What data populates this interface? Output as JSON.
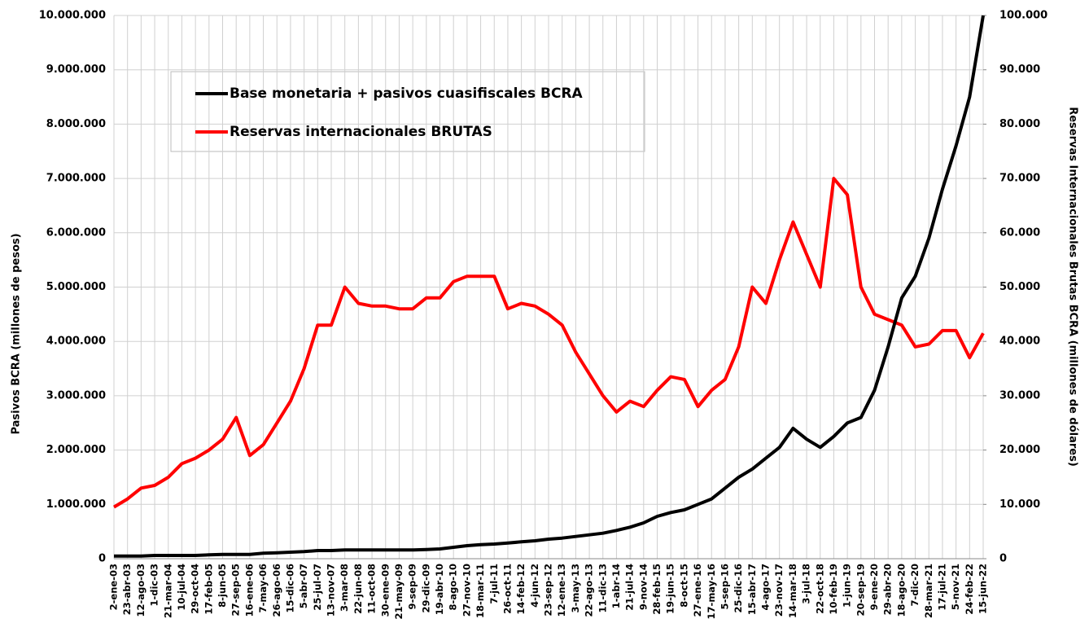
{
  "chart_data": {
    "type": "line",
    "categories": [
      "2-ene-03",
      "23-abr-03",
      "12-ago-03",
      "1-dic-03",
      "21-mar-04",
      "10-jul-04",
      "29-oct-04",
      "17-feb-05",
      "8-jun-05",
      "27-sep-05",
      "16-ene-06",
      "7-may-06",
      "26-ago-06",
      "15-dic-06",
      "5-abr-07",
      "25-jul-07",
      "13-nov-07",
      "3-mar-08",
      "22-jun-08",
      "11-oct-08",
      "30-ene-09",
      "21-may-09",
      "9-sep-09",
      "29-dic-09",
      "19-abr-10",
      "8-ago-10",
      "27-nov-10",
      "18-mar-11",
      "7-jul-11",
      "26-oct-11",
      "14-feb-12",
      "4-jun-12",
      "23-sep-12",
      "12-ene-13",
      "3-may-13",
      "22-ago-13",
      "11-dic-13",
      "1-abr-14",
      "21-jul-14",
      "9-nov-14",
      "28-feb-15",
      "19-jun-15",
      "8-oct-15",
      "27-ene-16",
      "17-may-16",
      "5-sep-16",
      "25-dic-16",
      "15-abr-17",
      "4-ago-17",
      "23-nov-17",
      "14-mar-18",
      "3-jul-18",
      "22-oct-18",
      "10-feb-19",
      "1-jun-19",
      "20-sep-19",
      "9-ene-20",
      "29-abr-20",
      "18-ago-20",
      "7-dic-20",
      "28-mar-21",
      "17-jul-21",
      "5-nov-21",
      "24-feb-22",
      "15-jun-22"
    ],
    "series": [
      {
        "name": "Base monetaria +  pasivos cuasifiscales BCRA",
        "color": "#000000",
        "axis": "y",
        "values": [
          50000,
          50000,
          50000,
          60000,
          60000,
          60000,
          60000,
          70000,
          80000,
          80000,
          80000,
          100000,
          110000,
          120000,
          130000,
          150000,
          150000,
          160000,
          160000,
          160000,
          160000,
          160000,
          160000,
          170000,
          180000,
          210000,
          240000,
          260000,
          270000,
          290000,
          310000,
          330000,
          360000,
          380000,
          410000,
          440000,
          470000,
          520000,
          580000,
          660000,
          780000,
          850000,
          900000,
          1000000,
          1100000,
          1300000,
          1500000,
          1650000,
          1850000,
          2050000,
          2400000,
          2200000,
          2050000,
          2250000,
          2500000,
          2600000,
          3100000,
          3900000,
          4800000,
          5200000,
          5900000,
          6800000,
          7600000,
          8500000,
          10000000
        ]
      },
      {
        "name": "Reservas internacionales BRUTAS",
        "color": "#ff0000",
        "axis": "y2",
        "values": [
          9500,
          11000,
          13000,
          13500,
          15000,
          17500,
          18500,
          20000,
          22000,
          26000,
          19000,
          21000,
          25000,
          29000,
          35000,
          43000,
          43000,
          50000,
          47000,
          46500,
          46500,
          46000,
          46000,
          48000,
          48000,
          51000,
          52000,
          52000,
          52000,
          46000,
          47000,
          46500,
          45000,
          43000,
          38000,
          34000,
          30000,
          27000,
          29000,
          28000,
          31000,
          33500,
          33000,
          28000,
          31000,
          33000,
          39000,
          50000,
          47000,
          55000,
          62000,
          56000,
          50000,
          70000,
          67000,
          50000,
          45000,
          44000,
          43000,
          39000,
          39500,
          42000,
          42000,
          37000,
          41500
        ]
      }
    ],
    "ylabel": "Pasivos BCRA (millones de pesos)",
    "y2label": "Reservas Internacionales Brutas BCRA (millones de dólares)",
    "ylim": [
      0,
      10000000
    ],
    "yticks": [
      0,
      {
        "value": 1000000,
        "label": "1.000.000"
      },
      {
        "value": 2000000,
        "label": "2.000.000"
      },
      {
        "value": 3000000,
        "label": "3.000.000"
      },
      {
        "value": 4000000,
        "label": "4.000.000"
      },
      {
        "value": 5000000,
        "label": "5.000.000"
      },
      {
        "value": 6000000,
        "label": "6.000.000"
      },
      {
        "value": 7000000,
        "label": "7.000.000"
      },
      {
        "value": 8000000,
        "label": "8.000.000"
      },
      {
        "value": 9000000,
        "label": "9.000.000"
      },
      {
        "value": 10000000,
        "label": "10.000.000"
      }
    ],
    "y2lim": [
      0,
      100000
    ],
    "y2ticks": [
      0,
      {
        "value": 10000,
        "label": "10.000"
      },
      {
        "value": 20000,
        "label": "20.000"
      },
      {
        "value": 30000,
        "label": "30.000"
      },
      {
        "value": 40000,
        "label": "40.000"
      },
      {
        "value": 50000,
        "label": "50.000"
      },
      {
        "value": 60000,
        "label": "60.000"
      },
      {
        "value": 70000,
        "label": "70.000"
      },
      {
        "value": 80000,
        "label": "80.000"
      },
      {
        "value": 90000,
        "label": "90.000"
      },
      {
        "value": 100000,
        "label": "100.000"
      }
    ],
    "grid": true
  }
}
